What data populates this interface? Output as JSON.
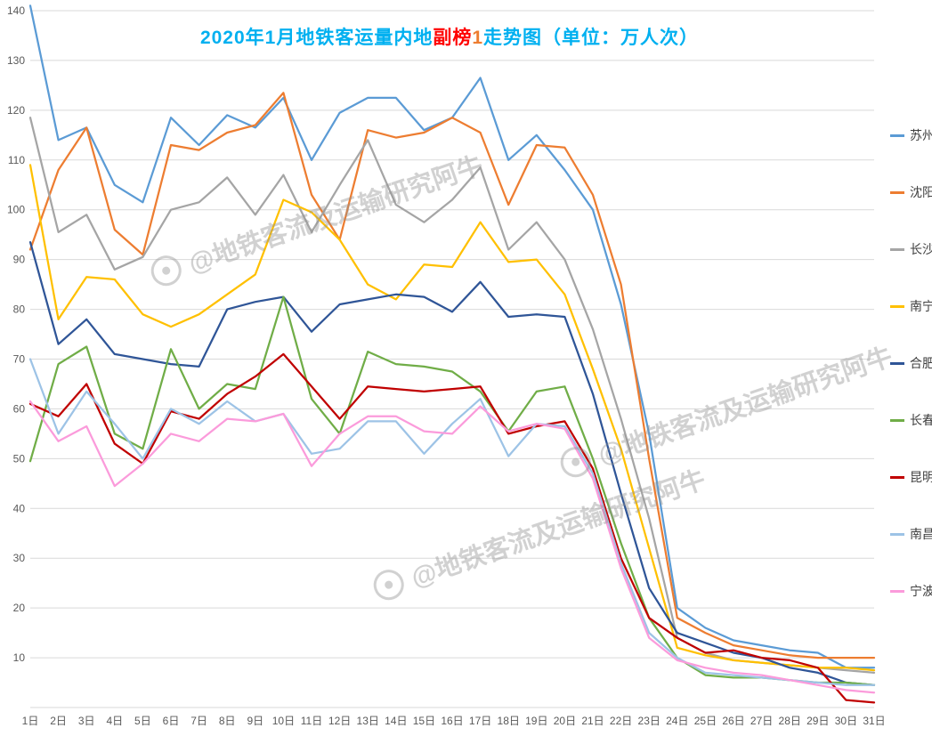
{
  "title": {
    "part1": "2020年1月地铁客运量内地",
    "part2": "副榜",
    "part3": "1",
    "part4": "走势图（单位：万人次）",
    "color_main": "#00b0f0",
    "color_highlight": "#ff0000",
    "color_number": "#ed7d31"
  },
  "watermark": {
    "text": "@地铁客流及运输研究阿牛"
  },
  "chart_data": {
    "type": "line",
    "title": "2020年1月地铁客运量内地副榜1走势图（单位：万人次）",
    "xlabel": "",
    "ylabel": "",
    "ylim": [
      0,
      140
    ],
    "ytick_step": 10,
    "grid": true,
    "legend_position": "right",
    "axis_label_color": "#595959",
    "gridline_color": "#d9d9d9",
    "x": [
      "1日",
      "2日",
      "3日",
      "4日",
      "5日",
      "6日",
      "7日",
      "8日",
      "9日",
      "10日",
      "11日",
      "12日",
      "13日",
      "14日",
      "15日",
      "16日",
      "17日",
      "18日",
      "19日",
      "20日",
      "21日",
      "22日",
      "23日",
      "24日",
      "25日",
      "26日",
      "27日",
      "28日",
      "29日",
      "30日",
      "31日"
    ],
    "ytick_labels": [
      "10",
      "20",
      "30",
      "40",
      "50",
      "60",
      "70",
      "80",
      "90",
      "100",
      "110",
      "120",
      "130",
      "140"
    ],
    "series": [
      {
        "name": "苏州",
        "color": "#5b9bd5",
        "values": [
          141,
          114,
          116.5,
          105,
          101.5,
          118.5,
          113,
          119,
          116.5,
          122.5,
          110,
          119.5,
          122.5,
          122.5,
          116,
          118.5,
          126.5,
          110,
          115,
          108,
          100,
          81,
          55,
          20,
          16,
          13.5,
          12.5,
          11.5,
          11,
          8,
          8
        ]
      },
      {
        "name": "沈阳",
        "color": "#ed7d31",
        "values": [
          92,
          108,
          116.5,
          96,
          91,
          113,
          112,
          115.5,
          117,
          123.5,
          103,
          94,
          116,
          114.5,
          115.5,
          118.5,
          115.5,
          101,
          113,
          112.5,
          103,
          85,
          50,
          18,
          15,
          12.5,
          11.5,
          10.5,
          10,
          10,
          10
        ]
      },
      {
        "name": "长沙",
        "color": "#a5a5a5",
        "values": [
          118.5,
          95.5,
          99,
          88,
          90.5,
          100,
          101.5,
          106.5,
          99,
          107,
          95.5,
          105,
          114,
          101,
          97.5,
          102,
          108.5,
          92,
          97.5,
          90,
          76,
          58,
          38,
          14,
          11,
          9.5,
          9,
          8.5,
          8,
          7.5,
          7
        ]
      },
      {
        "name": "南宁",
        "color": "#ffc000",
        "values": [
          109,
          78,
          86.5,
          86,
          79,
          76.5,
          79,
          83,
          87,
          102,
          99.5,
          94,
          85,
          82,
          89,
          88.5,
          97.5,
          89.5,
          90,
          83,
          68,
          52,
          32,
          12,
          10.5,
          9.5,
          9,
          8.5,
          8,
          8,
          7.5
        ]
      },
      {
        "name": "合肥",
        "color": "#2f5597",
        "values": [
          93.5,
          73,
          78,
          71,
          70,
          69,
          68.5,
          80,
          81.5,
          82.5,
          75.5,
          81,
          82,
          83,
          82.5,
          79.5,
          85.5,
          78.5,
          79,
          78.5,
          63,
          43,
          24,
          15,
          13,
          11,
          10,
          8,
          7,
          5,
          4.5
        ]
      },
      {
        "name": "长春",
        "color": "#70ad47",
        "values": [
          49.5,
          69,
          72.5,
          55,
          52,
          72,
          60,
          65,
          64,
          82.5,
          62,
          55,
          71.5,
          69,
          68.5,
          67.5,
          63.5,
          55.5,
          63.5,
          64.5,
          50,
          33,
          18,
          10,
          6.5,
          6,
          6,
          5.5,
          5,
          5,
          4.5
        ]
      },
      {
        "name": "昆明",
        "color": "#c00000",
        "values": [
          61,
          58.5,
          65,
          53,
          49,
          59.5,
          58,
          63,
          66.5,
          71,
          64.5,
          58,
          64.5,
          64,
          63.5,
          64,
          64.5,
          55,
          56.5,
          57.5,
          48,
          30,
          18,
          14,
          11,
          11.5,
          10,
          9.5,
          8,
          1.5,
          1
        ]
      },
      {
        "name": "南昌",
        "color": "#9dc3e6",
        "values": [
          70,
          55,
          63.5,
          57,
          50,
          60,
          57,
          61.5,
          57.5,
          59,
          51,
          52,
          57.5,
          57.5,
          51,
          57,
          62,
          50.5,
          57,
          56.5,
          47,
          29,
          15,
          10,
          7,
          6.5,
          6,
          5.5,
          5,
          4.5,
          4.5
        ]
      },
      {
        "name": "宁波",
        "color": "#fb9bdb",
        "values": [
          61.5,
          53.5,
          56.5,
          44.5,
          49,
          55,
          53.5,
          58,
          57.5,
          59,
          48.5,
          55,
          58.5,
          58.5,
          55.5,
          55,
          60.5,
          55.5,
          57,
          56,
          46,
          28,
          14,
          9.5,
          8,
          7,
          6.5,
          5.5,
          4.5,
          3.5,
          3
        ]
      }
    ]
  }
}
